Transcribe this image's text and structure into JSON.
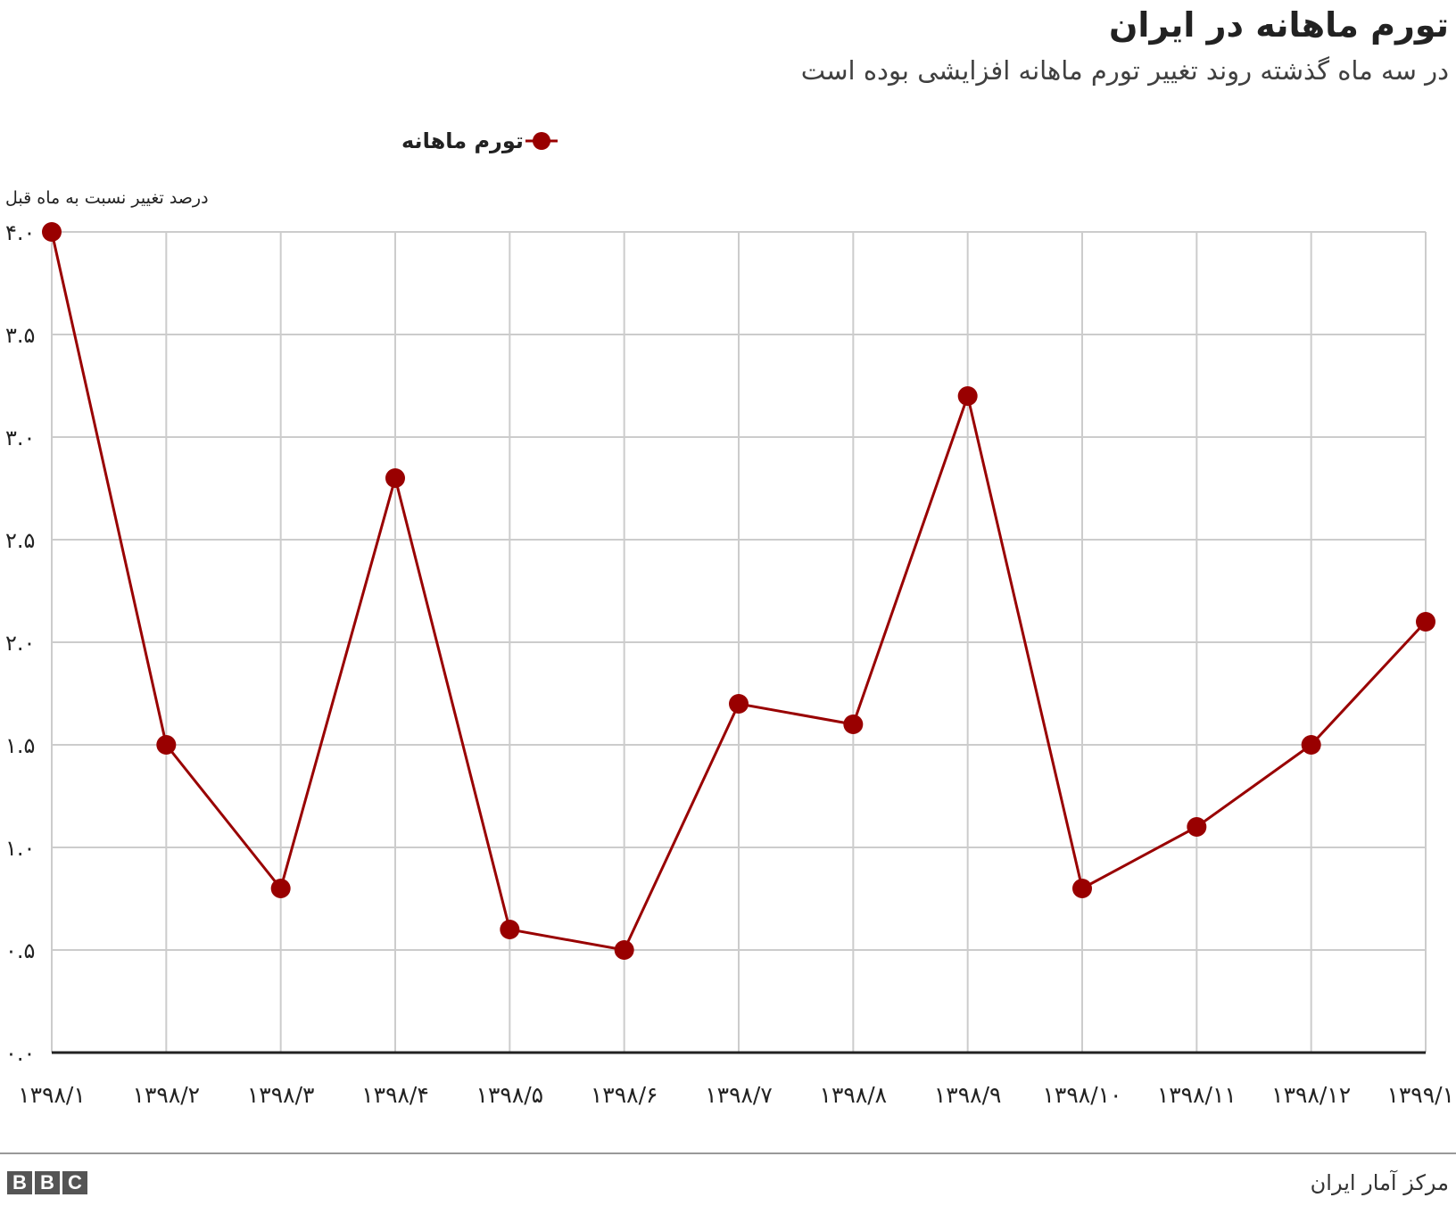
{
  "header": {
    "title": "تورم ماهانه در ایران",
    "subtitle": "در سه ماه گذشته روند تغییر تورم ماهانه افزایشی بوده است"
  },
  "legend": {
    "label": "تورم ماهانه"
  },
  "footer": {
    "source": "مرکز آمار ایران",
    "logo_letters": [
      "B",
      "B",
      "C"
    ]
  },
  "colors": {
    "series": "#990000",
    "grid": "#cccccc",
    "axis": "#222222"
  },
  "chart_data": {
    "type": "line",
    "ylabel": "درصد تغییر نسبت به ماه قبل",
    "xlabel": "",
    "ylim": [
      0,
      4
    ],
    "yticks": [
      0,
      0.5,
      1,
      1.5,
      2,
      2.5,
      3,
      3.5,
      4
    ],
    "ytick_labels": [
      "۰.۰",
      "۰.۵",
      "۱.۰",
      "۱.۵",
      "۲.۰",
      "۲.۵",
      "۳.۰",
      "۳.۵",
      "۴.۰"
    ],
    "categories": [
      "۱۳۹۸/۱",
      "۱۳۹۸/۲",
      "۱۳۹۸/۳",
      "۱۳۹۸/۴",
      "۱۳۹۸/۵",
      "۱۳۹۸/۶",
      "۱۳۹۸/۷",
      "۱۳۹۸/۸",
      "۱۳۹۸/۹",
      "۱۳۹۸/۱۰",
      "۱۳۹۸/۱۱",
      "۱۳۹۸/۱۲",
      "۱۳۹۹/۱"
    ],
    "series": [
      {
        "name": "تورم ماهانه",
        "values": [
          4.0,
          1.5,
          0.8,
          2.8,
          0.6,
          0.5,
          1.7,
          1.6,
          3.2,
          0.8,
          1.1,
          1.5,
          2.1
        ]
      }
    ],
    "grid": true,
    "legend_position": "top"
  }
}
